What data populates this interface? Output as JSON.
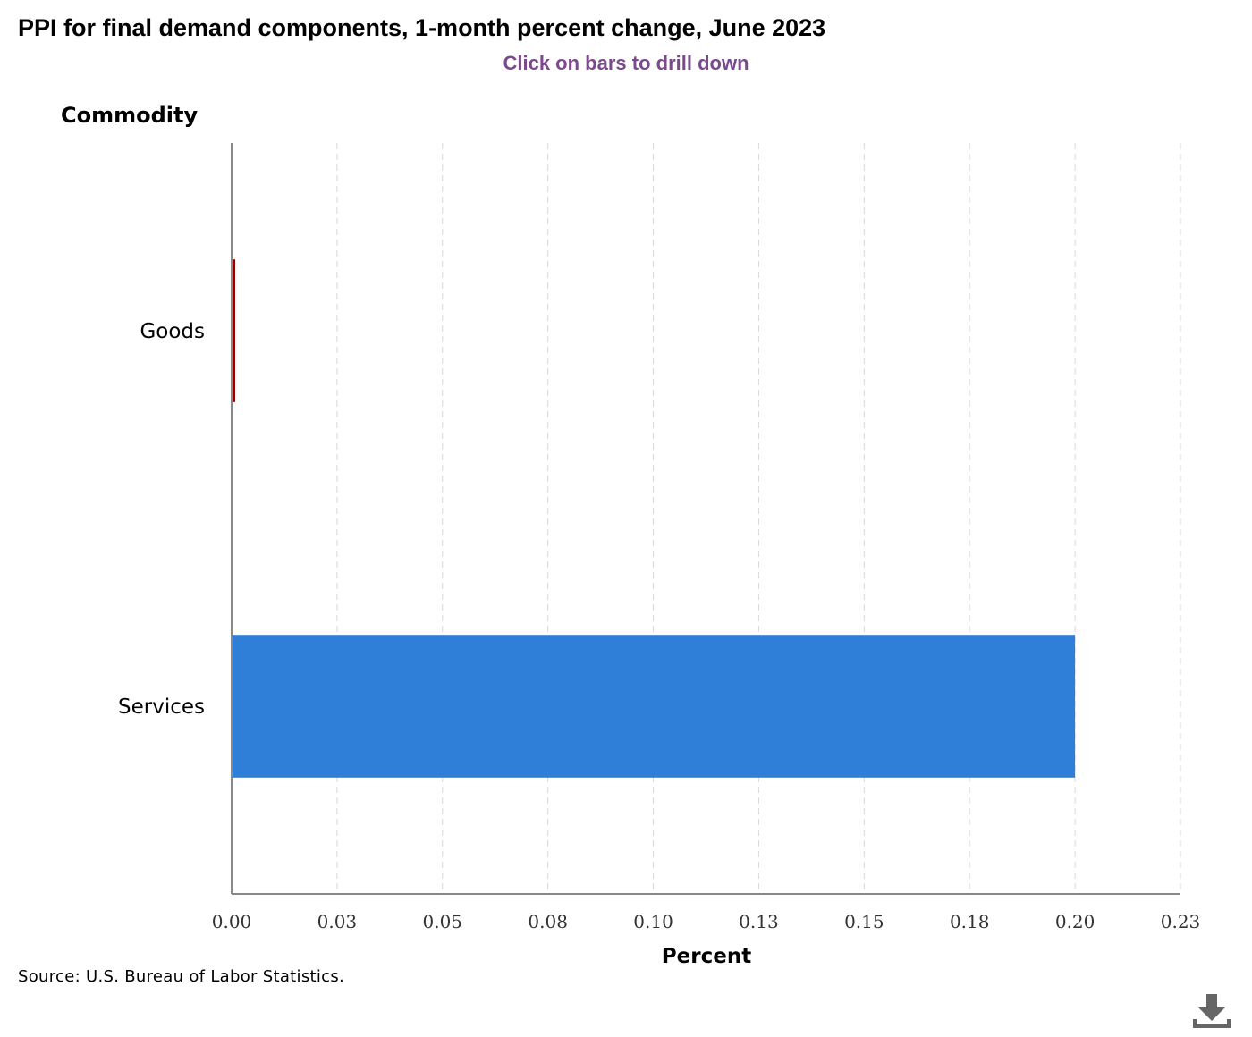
{
  "chart_data": {
    "type": "bar",
    "orientation": "horizontal",
    "title": "PPI for final demand components, 1-month percent change, June 2023",
    "subtitle": "Click on bars to drill down",
    "categories": [
      "Goods",
      "Services"
    ],
    "values": [
      0.0,
      0.2
    ],
    "colors": [
      "#8b0000",
      "#2f7ed8"
    ],
    "xlabel": "Percent",
    "ylabel": "Commodity",
    "xlim": [
      0,
      0.225
    ],
    "x_ticks": [
      0,
      0.025,
      0.05,
      0.075,
      0.1,
      0.125,
      0.15,
      0.175,
      0.2,
      0.225
    ],
    "x_tick_labels": [
      "0.00",
      "0.03",
      "0.05",
      "0.08",
      "0.10",
      "0.13",
      "0.15",
      "0.18",
      "0.20",
      "0.23"
    ],
    "grid": "vertical-dashed",
    "legend": "none"
  },
  "source": "Source: U.S. Bureau of Labor Statistics.",
  "icons": {
    "download": "download-icon"
  },
  "colors": {
    "subtitle": "#7a4a8c",
    "axis": "#888888",
    "grid": "#d8d8d8"
  }
}
